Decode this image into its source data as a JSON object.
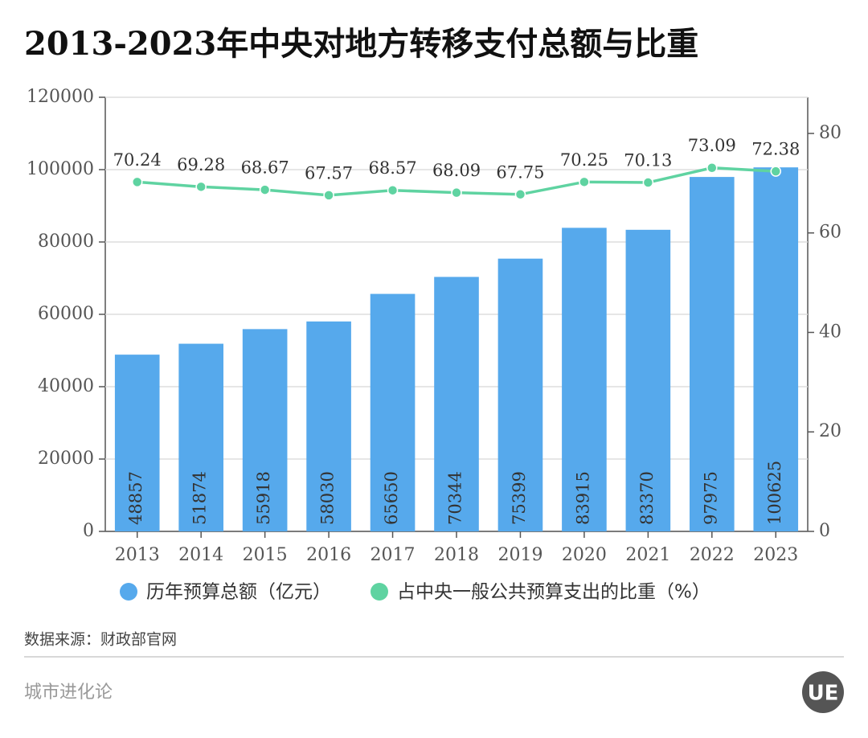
{
  "chart_data": {
    "type": "bar_line",
    "title": "2013-2023年中央对地方转移支付总额与比重",
    "categories": [
      "2013",
      "2014",
      "2015",
      "2016",
      "2017",
      "2018",
      "2019",
      "2020",
      "2021",
      "2022",
      "2023"
    ],
    "series": [
      {
        "name": "历年预算总额（亿元）",
        "type": "bar",
        "color": "#56a9ec",
        "values": [
          48857,
          51874,
          55918,
          58030,
          65650,
          70344,
          75399,
          83915,
          83370,
          97975,
          100625
        ]
      },
      {
        "name": "占中央一般公共预算支出的比重（%）",
        "type": "line",
        "axis": "y2",
        "color": "#5fd3a1",
        "values": [
          70.24,
          69.28,
          68.67,
          67.57,
          68.57,
          68.09,
          67.75,
          70.25,
          70.13,
          73.09,
          72.38
        ]
      }
    ],
    "ylim": [
      0,
      120000
    ],
    "yticks": [
      0,
      20000,
      40000,
      60000,
      80000,
      100000,
      120000
    ],
    "y2lim": [
      0,
      87.27
    ],
    "y2ticks": [
      0,
      20,
      40,
      60,
      80
    ],
    "grid": true,
    "source": "数据来源：财政部官网",
    "footer": "城市进化论",
    "logo": "UE"
  }
}
